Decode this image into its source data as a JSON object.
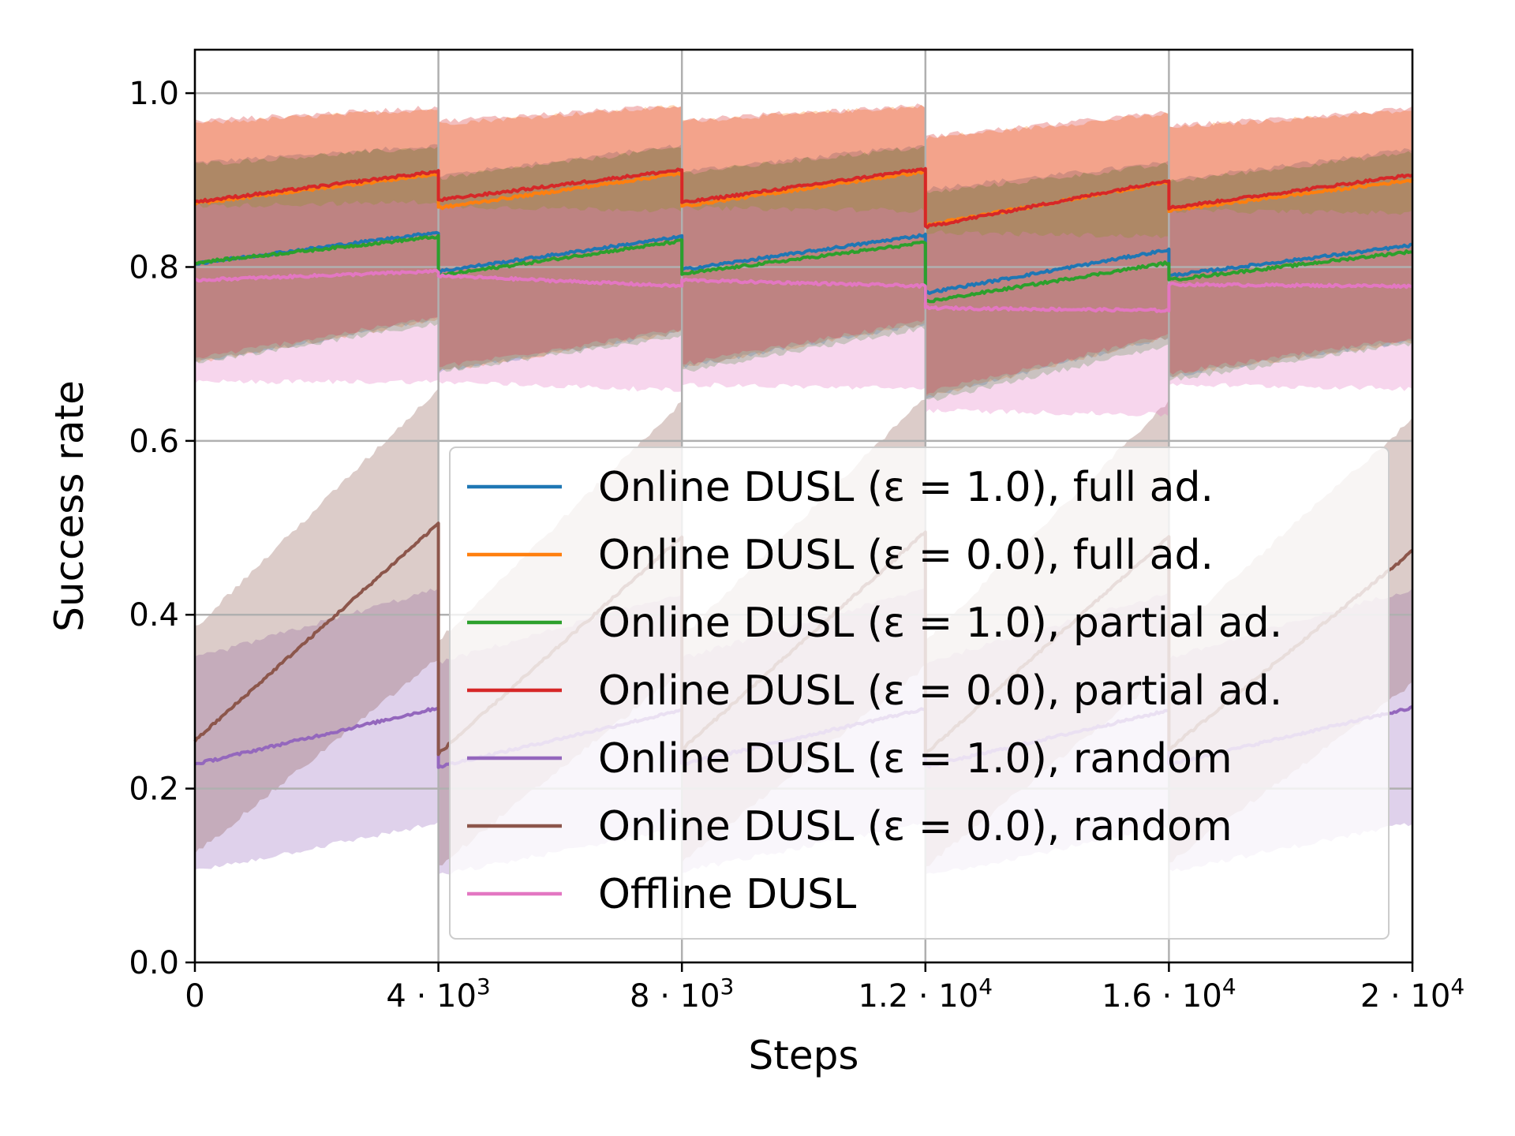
{
  "chart_data": {
    "type": "line",
    "title": "",
    "xlabel": "Steps",
    "ylabel": "Success rate",
    "xlim": [
      0,
      20000
    ],
    "ylim": [
      0,
      1.05
    ],
    "grid": true,
    "legend_position": "lower-right",
    "x_ticks": [
      {
        "value": 0,
        "mantissa": "0",
        "exponent": ""
      },
      {
        "value": 4000,
        "mantissa": "4 · 10",
        "exponent": "3"
      },
      {
        "value": 8000,
        "mantissa": "8 · 10",
        "exponent": "3"
      },
      {
        "value": 12000,
        "mantissa": "1.2 · 10",
        "exponent": "4"
      },
      {
        "value": 16000,
        "mantissa": "1.6 · 10",
        "exponent": "4"
      },
      {
        "value": 20000,
        "mantissa": "2 · 10",
        "exponent": "4"
      }
    ],
    "y_ticks": [
      {
        "value": 0.0,
        "label": "0.0"
      },
      {
        "value": 0.2,
        "label": "0.2"
      },
      {
        "value": 0.4,
        "label": "0.4"
      },
      {
        "value": 0.6,
        "label": "0.6"
      },
      {
        "value": 0.8,
        "label": "0.8"
      },
      {
        "value": 1.0,
        "label": "1.0"
      }
    ],
    "segments": [
      [
        0,
        4000
      ],
      [
        4000,
        8000
      ],
      [
        8000,
        12000
      ],
      [
        12000,
        16000
      ],
      [
        16000,
        20000
      ]
    ],
    "series": [
      {
        "name": "Online DUSL (ε = 1.0), full ad.",
        "color": "#1f77b4",
        "mean": [
          [
            0.804,
            0.84
          ],
          [
            0.795,
            0.835
          ],
          [
            0.797,
            0.837
          ],
          [
            0.77,
            0.82
          ],
          [
            0.79,
            0.825
          ]
        ],
        "lower": [
          [
            0.69,
            0.74
          ],
          [
            0.68,
            0.725
          ],
          [
            0.685,
            0.735
          ],
          [
            0.65,
            0.72
          ],
          [
            0.675,
            0.715
          ]
        ],
        "upper": [
          [
            0.92,
            0.94
          ],
          [
            0.905,
            0.94
          ],
          [
            0.91,
            0.94
          ],
          [
            0.89,
            0.92
          ],
          [
            0.9,
            0.935
          ]
        ]
      },
      {
        "name": "Online DUSL (ε = 0.0), full ad.",
        "color": "#ff7f0e",
        "mean": [
          [
            0.873,
            0.907
          ],
          [
            0.868,
            0.908
          ],
          [
            0.87,
            0.91
          ],
          [
            0.848,
            0.898
          ],
          [
            0.865,
            0.9
          ]
        ],
        "lower": [
          [
            0.69,
            0.74
          ],
          [
            0.68,
            0.725
          ],
          [
            0.685,
            0.735
          ],
          [
            0.65,
            0.72
          ],
          [
            0.675,
            0.715
          ]
        ],
        "upper": [
          [
            0.965,
            0.982
          ],
          [
            0.965,
            0.985
          ],
          [
            0.968,
            0.985
          ],
          [
            0.948,
            0.976
          ],
          [
            0.96,
            0.98
          ]
        ]
      },
      {
        "name": "Online DUSL (ε = 1.0), partial ad.",
        "color": "#2ca02c",
        "mean": [
          [
            0.805,
            0.835
          ],
          [
            0.79,
            0.83
          ],
          [
            0.792,
            0.828
          ],
          [
            0.76,
            0.805
          ],
          [
            0.785,
            0.818
          ]
        ],
        "lower": [
          [
            0.69,
            0.735
          ],
          [
            0.68,
            0.72
          ],
          [
            0.68,
            0.73
          ],
          [
            0.645,
            0.71
          ],
          [
            0.67,
            0.712
          ]
        ],
        "upper": [
          [
            0.918,
            0.938
          ],
          [
            0.902,
            0.938
          ],
          [
            0.908,
            0.938
          ],
          [
            0.885,
            0.918
          ],
          [
            0.898,
            0.932
          ]
        ]
      },
      {
        "name": "Online DUSL (ε = 0.0), partial ad.",
        "color": "#d62728",
        "mean": [
          [
            0.875,
            0.91
          ],
          [
            0.877,
            0.912
          ],
          [
            0.874,
            0.913
          ],
          [
            0.846,
            0.9
          ],
          [
            0.868,
            0.906
          ]
        ],
        "lower": [
          [
            0.695,
            0.742
          ],
          [
            0.685,
            0.728
          ],
          [
            0.688,
            0.738
          ],
          [
            0.655,
            0.722
          ],
          [
            0.678,
            0.718
          ]
        ],
        "upper": [
          [
            0.968,
            0.984
          ],
          [
            0.968,
            0.986
          ],
          [
            0.97,
            0.986
          ],
          [
            0.95,
            0.978
          ],
          [
            0.962,
            0.982
          ]
        ]
      },
      {
        "name": "Online DUSL (ε = 1.0), random",
        "color": "#9467bd",
        "mean": [
          [
            0.228,
            0.293
          ],
          [
            0.225,
            0.29
          ],
          [
            0.228,
            0.292
          ],
          [
            0.225,
            0.29
          ],
          [
            0.228,
            0.293
          ]
        ],
        "lower": [
          [
            0.105,
            0.16
          ],
          [
            0.1,
            0.155
          ],
          [
            0.105,
            0.16
          ],
          [
            0.1,
            0.155
          ],
          [
            0.105,
            0.16
          ]
        ],
        "upper": [
          [
            0.35,
            0.43
          ],
          [
            0.345,
            0.425
          ],
          [
            0.35,
            0.43
          ],
          [
            0.345,
            0.425
          ],
          [
            0.35,
            0.43
          ]
        ]
      },
      {
        "name": "Online DUSL (ε = 0.0), random",
        "color": "#8c564b",
        "mean": [
          [
            0.255,
            0.505
          ],
          [
            0.24,
            0.49
          ],
          [
            0.245,
            0.495
          ],
          [
            0.24,
            0.49
          ],
          [
            0.245,
            0.473
          ]
        ],
        "lower": [
          [
            0.125,
            0.35
          ],
          [
            0.11,
            0.335
          ],
          [
            0.115,
            0.34
          ],
          [
            0.11,
            0.335
          ],
          [
            0.115,
            0.32
          ]
        ],
        "upper": [
          [
            0.385,
            0.66
          ],
          [
            0.37,
            0.645
          ],
          [
            0.375,
            0.65
          ],
          [
            0.37,
            0.645
          ],
          [
            0.375,
            0.625
          ]
        ]
      },
      {
        "name": "Offline DUSL",
        "color": "#e377c2",
        "mean": [
          [
            0.785,
            0.795
          ],
          [
            0.79,
            0.778
          ],
          [
            0.785,
            0.778
          ],
          [
            0.753,
            0.75
          ],
          [
            0.78,
            0.778
          ]
        ],
        "lower": [
          [
            0.668,
            0.668
          ],
          [
            0.668,
            0.658
          ],
          [
            0.665,
            0.66
          ],
          [
            0.635,
            0.63
          ],
          [
            0.665,
            0.66
          ]
        ],
        "upper": [
          [
            0.87,
            0.875
          ],
          [
            0.87,
            0.865
          ],
          [
            0.868,
            0.865
          ],
          [
            0.84,
            0.835
          ],
          [
            0.865,
            0.862
          ]
        ]
      }
    ]
  }
}
